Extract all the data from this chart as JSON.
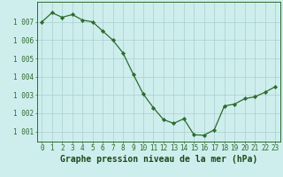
{
  "x": [
    0,
    1,
    2,
    3,
    4,
    5,
    6,
    7,
    8,
    9,
    10,
    11,
    12,
    13,
    14,
    15,
    16,
    17,
    18,
    19,
    20,
    21,
    22,
    23
  ],
  "y": [
    1007.0,
    1007.5,
    1007.25,
    1007.4,
    1007.1,
    1007.0,
    1006.5,
    1006.0,
    1005.3,
    1004.15,
    1003.05,
    1002.3,
    1001.65,
    1001.45,
    1001.7,
    1000.82,
    1000.8,
    1001.1,
    1002.4,
    1002.5,
    1002.8,
    1002.9,
    1003.15,
    1003.45
  ],
  "line_color": "#2d6a2d",
  "marker": "D",
  "marker_size": 2.2,
  "bg_color": "#ceeeed",
  "grid_color": "#aacece",
  "ylim_min": 1000.45,
  "ylim_max": 1008.1,
  "ytick_vals": [
    1001,
    1002,
    1003,
    1004,
    1005,
    1006,
    1007
  ],
  "ytick_labels": [
    "1 001",
    "1 002",
    "1 003",
    "1 004",
    "1 005",
    "1 006",
    "1 007"
  ],
  "xticks": [
    0,
    1,
    2,
    3,
    4,
    5,
    6,
    7,
    8,
    9,
    10,
    11,
    12,
    13,
    14,
    15,
    16,
    17,
    18,
    19,
    20,
    21,
    22,
    23
  ],
  "spine_color": "#2d6a2d",
  "tick_color": "#2d6a2d",
  "label_color": "#1a4a1a",
  "xlabel": "Graphe pression niveau de la mer (hPa)",
  "tick_fontsize": 5.5,
  "xlabel_fontsize": 7.0
}
